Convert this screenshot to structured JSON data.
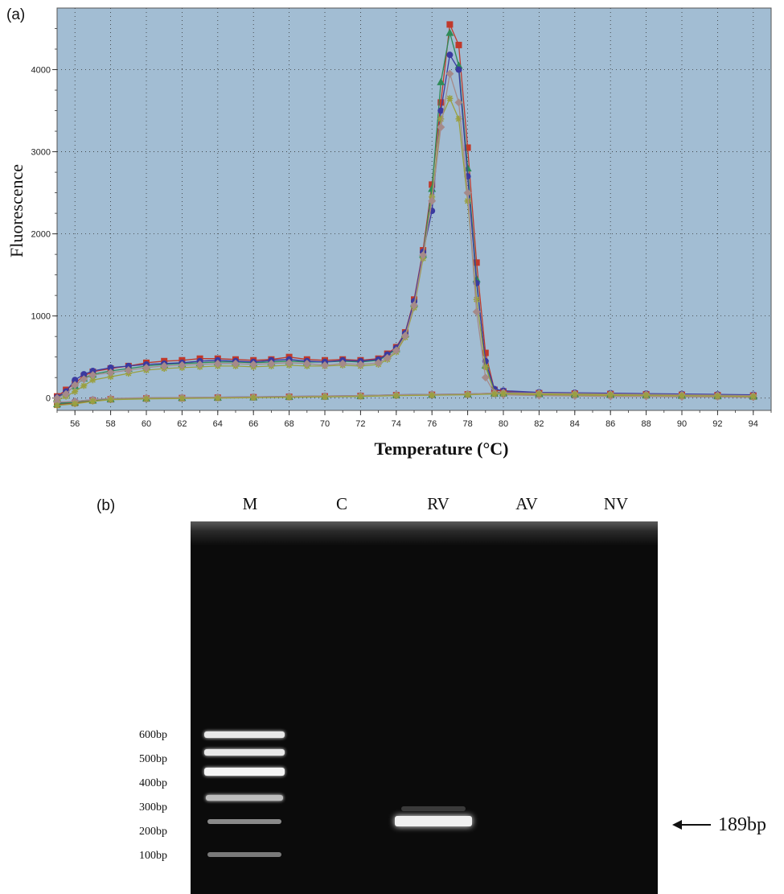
{
  "chart_data": [
    {
      "type": "line",
      "panel_label": "(a)",
      "xlabel": "Temperature (°C)",
      "ylabel": "Fluorescence",
      "xlim": [
        55,
        95
      ],
      "ylim": [
        -150,
        4750
      ],
      "x_ticks": [
        "56",
        "58",
        "60",
        "62",
        "64",
        "66",
        "68",
        "70",
        "72",
        "74",
        "76",
        "78",
        "80",
        "82",
        "84",
        "86",
        "88",
        "90",
        "92",
        "94"
      ],
      "y_ticks": [
        "0",
        "1000",
        "2000",
        "3000",
        "4000"
      ],
      "grid": true,
      "background": "#a2bdd3",
      "series": [
        {
          "color": "#c0392b",
          "marker": "square",
          "x": [
            55,
            55.5,
            56,
            56.5,
            57,
            58,
            59,
            60,
            61,
            62,
            63,
            64,
            65,
            66,
            67,
            68,
            69,
            70,
            71,
            72,
            73,
            73.5,
            74,
            74.5,
            75,
            75.5,
            76,
            76.5,
            77,
            77.5,
            78,
            78.5,
            79,
            79.5,
            80,
            82,
            84,
            86,
            88,
            90,
            92,
            94
          ],
          "y": [
            20,
            100,
            180,
            270,
            320,
            360,
            390,
            430,
            450,
            460,
            480,
            480,
            470,
            460,
            470,
            500,
            470,
            460,
            470,
            460,
            480,
            540,
            620,
            800,
            1200,
            1800,
            2600,
            3600,
            4550,
            4300,
            3050,
            1650,
            550,
            100,
            80,
            60,
            55,
            50,
            45,
            40,
            35,
            30
          ]
        },
        {
          "color": "#2e8b57",
          "marker": "triangle",
          "x": [
            55,
            55.5,
            56,
            56.5,
            57,
            58,
            59,
            60,
            61,
            62,
            63,
            64,
            65,
            66,
            67,
            68,
            69,
            70,
            71,
            72,
            73,
            73.5,
            74,
            74.5,
            75,
            75.5,
            76,
            76.5,
            77,
            77.5,
            78,
            78.5,
            79,
            79.5,
            80,
            82,
            84,
            86,
            88,
            90,
            92,
            94
          ],
          "y": [
            0,
            60,
            150,
            240,
            290,
            330,
            360,
            390,
            410,
            420,
            430,
            440,
            440,
            430,
            440,
            450,
            440,
            440,
            450,
            440,
            460,
            520,
            600,
            780,
            1150,
            1750,
            2550,
            3850,
            4450,
            4050,
            2800,
            1450,
            400,
            80,
            60,
            50,
            45,
            40,
            35,
            30,
            25,
            20
          ]
        },
        {
          "color": "#3a3aa0",
          "marker": "circle",
          "x": [
            55,
            55.5,
            56,
            56.5,
            57,
            58,
            59,
            60,
            61,
            62,
            63,
            64,
            65,
            66,
            67,
            68,
            69,
            70,
            71,
            72,
            73,
            73.5,
            74,
            74.5,
            75,
            75.5,
            76,
            76.5,
            77,
            77.5,
            78,
            78.5,
            79,
            79.5,
            80,
            82,
            84,
            86,
            88,
            90,
            92,
            94
          ],
          "y": [
            10,
            80,
            220,
            290,
            330,
            370,
            390,
            410,
            420,
            430,
            450,
            460,
            450,
            440,
            460,
            470,
            450,
            440,
            460,
            450,
            470,
            530,
            610,
            790,
            1180,
            1780,
            2280,
            3500,
            4180,
            4000,
            2700,
            1400,
            450,
            110,
            90,
            70,
            65,
            60,
            55,
            50,
            45,
            40
          ]
        },
        {
          "color": "#9aa040",
          "marker": "star",
          "x": [
            55,
            55.5,
            56,
            56.5,
            57,
            58,
            59,
            60,
            61,
            62,
            63,
            64,
            65,
            66,
            67,
            68,
            69,
            70,
            71,
            72,
            73,
            73.5,
            74,
            74.5,
            75,
            75.5,
            76,
            76.5,
            77,
            77.5,
            78,
            78.5,
            79,
            79.5,
            80,
            82,
            84,
            86,
            88,
            90,
            92,
            94
          ],
          "y": [
            -30,
            20,
            80,
            150,
            220,
            260,
            300,
            340,
            360,
            370,
            380,
            390,
            390,
            380,
            390,
            400,
            390,
            390,
            400,
            390,
            410,
            470,
            560,
            740,
            1100,
            1700,
            2450,
            3400,
            3650,
            3400,
            2400,
            1200,
            380,
            70,
            50,
            40,
            35,
            30,
            25,
            20,
            15,
            10
          ]
        },
        {
          "color": "#a58a8a",
          "marker": "diamond",
          "x": [
            55,
            55.5,
            56,
            56.5,
            57,
            58,
            59,
            60,
            61,
            62,
            63,
            64,
            65,
            66,
            67,
            68,
            69,
            70,
            71,
            72,
            73,
            73.5,
            74,
            74.5,
            75,
            75.5,
            76,
            76.5,
            77,
            77.5,
            78,
            78.5,
            79,
            79.5,
            80,
            82,
            84,
            86,
            88,
            90,
            92,
            94
          ],
          "y": [
            0,
            50,
            160,
            230,
            280,
            310,
            340,
            370,
            390,
            400,
            410,
            420,
            420,
            410,
            420,
            430,
            420,
            400,
            420,
            410,
            430,
            490,
            580,
            760,
            1130,
            1740,
            2400,
            3300,
            3950,
            3600,
            2500,
            1050,
            250,
            60,
            40,
            30,
            25,
            20,
            20,
            15,
            15,
            10
          ]
        },
        {
          "color": "#3a3aa0",
          "marker": "circle",
          "x": [
            55,
            56,
            57,
            58,
            60,
            62,
            64,
            66,
            68,
            70,
            72,
            74,
            76,
            78,
            79.5,
            80,
            82,
            84,
            86,
            88,
            90,
            92,
            94
          ],
          "y": [
            -60,
            -40,
            -20,
            -10,
            0,
            5,
            10,
            15,
            20,
            25,
            30,
            40,
            45,
            50,
            60,
            70,
            65,
            60,
            55,
            50,
            45,
            40,
            35
          ]
        },
        {
          "color": "#c0392b",
          "marker": "square",
          "x": [
            55,
            56,
            57,
            58,
            60,
            62,
            64,
            66,
            68,
            70,
            72,
            74,
            76,
            78,
            79.5,
            80,
            82,
            84,
            86,
            88,
            90,
            92,
            94
          ],
          "y": [
            -80,
            -60,
            -30,
            -15,
            -5,
            0,
            5,
            10,
            15,
            20,
            25,
            35,
            40,
            45,
            55,
            60,
            55,
            50,
            45,
            40,
            35,
            30,
            25
          ]
        },
        {
          "color": "#2e8b57",
          "marker": "triangle",
          "x": [
            55,
            56,
            57,
            58,
            60,
            62,
            64,
            66,
            68,
            70,
            72,
            74,
            76,
            78,
            79.5,
            80,
            82,
            84,
            86,
            88,
            90,
            92,
            94
          ],
          "y": [
            -70,
            -50,
            -25,
            -10,
            0,
            5,
            8,
            12,
            18,
            22,
            28,
            38,
            42,
            48,
            58,
            62,
            58,
            52,
            48,
            42,
            38,
            32,
            28
          ]
        },
        {
          "color": "#a58a8a",
          "marker": "diamond",
          "x": [
            55,
            56,
            57,
            58,
            60,
            62,
            64,
            66,
            68,
            70,
            72,
            74,
            76,
            78,
            79.5,
            80,
            82,
            84,
            86,
            88,
            90,
            92,
            94
          ],
          "y": [
            -50,
            -40,
            -20,
            -5,
            5,
            8,
            10,
            14,
            20,
            24,
            30,
            40,
            44,
            50,
            62,
            65,
            60,
            55,
            50,
            45,
            40,
            35,
            30
          ]
        },
        {
          "color": "#9aa040",
          "marker": "star",
          "x": [
            55,
            56,
            57,
            58,
            60,
            62,
            64,
            66,
            68,
            70,
            72,
            74,
            76,
            78,
            79.5,
            80,
            82,
            84,
            86,
            88,
            90,
            92,
            94
          ],
          "y": [
            -90,
            -70,
            -40,
            -20,
            -10,
            -5,
            0,
            5,
            10,
            15,
            20,
            30,
            35,
            40,
            50,
            55,
            50,
            45,
            40,
            35,
            30,
            25,
            20
          ]
        }
      ]
    }
  ],
  "gel": {
    "panel_label": "(b)",
    "lanes": [
      "M",
      "C",
      "RV",
      "AV",
      "NV"
    ],
    "ladder_labels": [
      "600bp",
      "500bp",
      "400bp",
      "300bp",
      "200bp",
      "100bp"
    ],
    "band_label": "189bp"
  }
}
